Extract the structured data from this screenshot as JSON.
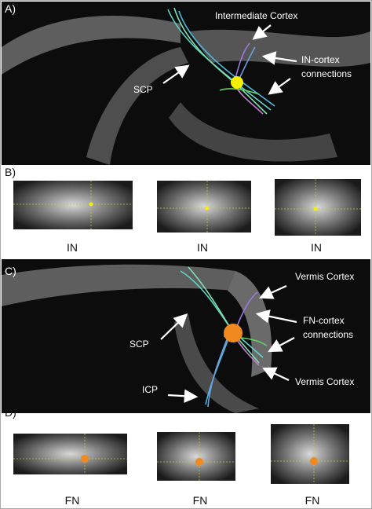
{
  "panel_a": {
    "label": "A)",
    "annotations": {
      "intermediate_cortex": "Intermediate Cortex",
      "scp": "SCP",
      "connections": [
        "IN-cortex",
        "connections"
      ]
    }
  },
  "panel_b": {
    "label": "B)",
    "views": [
      "IN",
      "IN",
      "IN"
    ]
  },
  "panel_c": {
    "label": "C)",
    "annotations": {
      "vermis_top": "Vermis Cortex",
      "connections": [
        "FN-cortex",
        "connections"
      ],
      "scp": "SCP",
      "icp": "ICP",
      "vermis_bottom": "Vermis Cortex"
    }
  },
  "panel_d": {
    "label": "D)",
    "views": [
      "FN",
      "FN",
      "FN"
    ]
  }
}
